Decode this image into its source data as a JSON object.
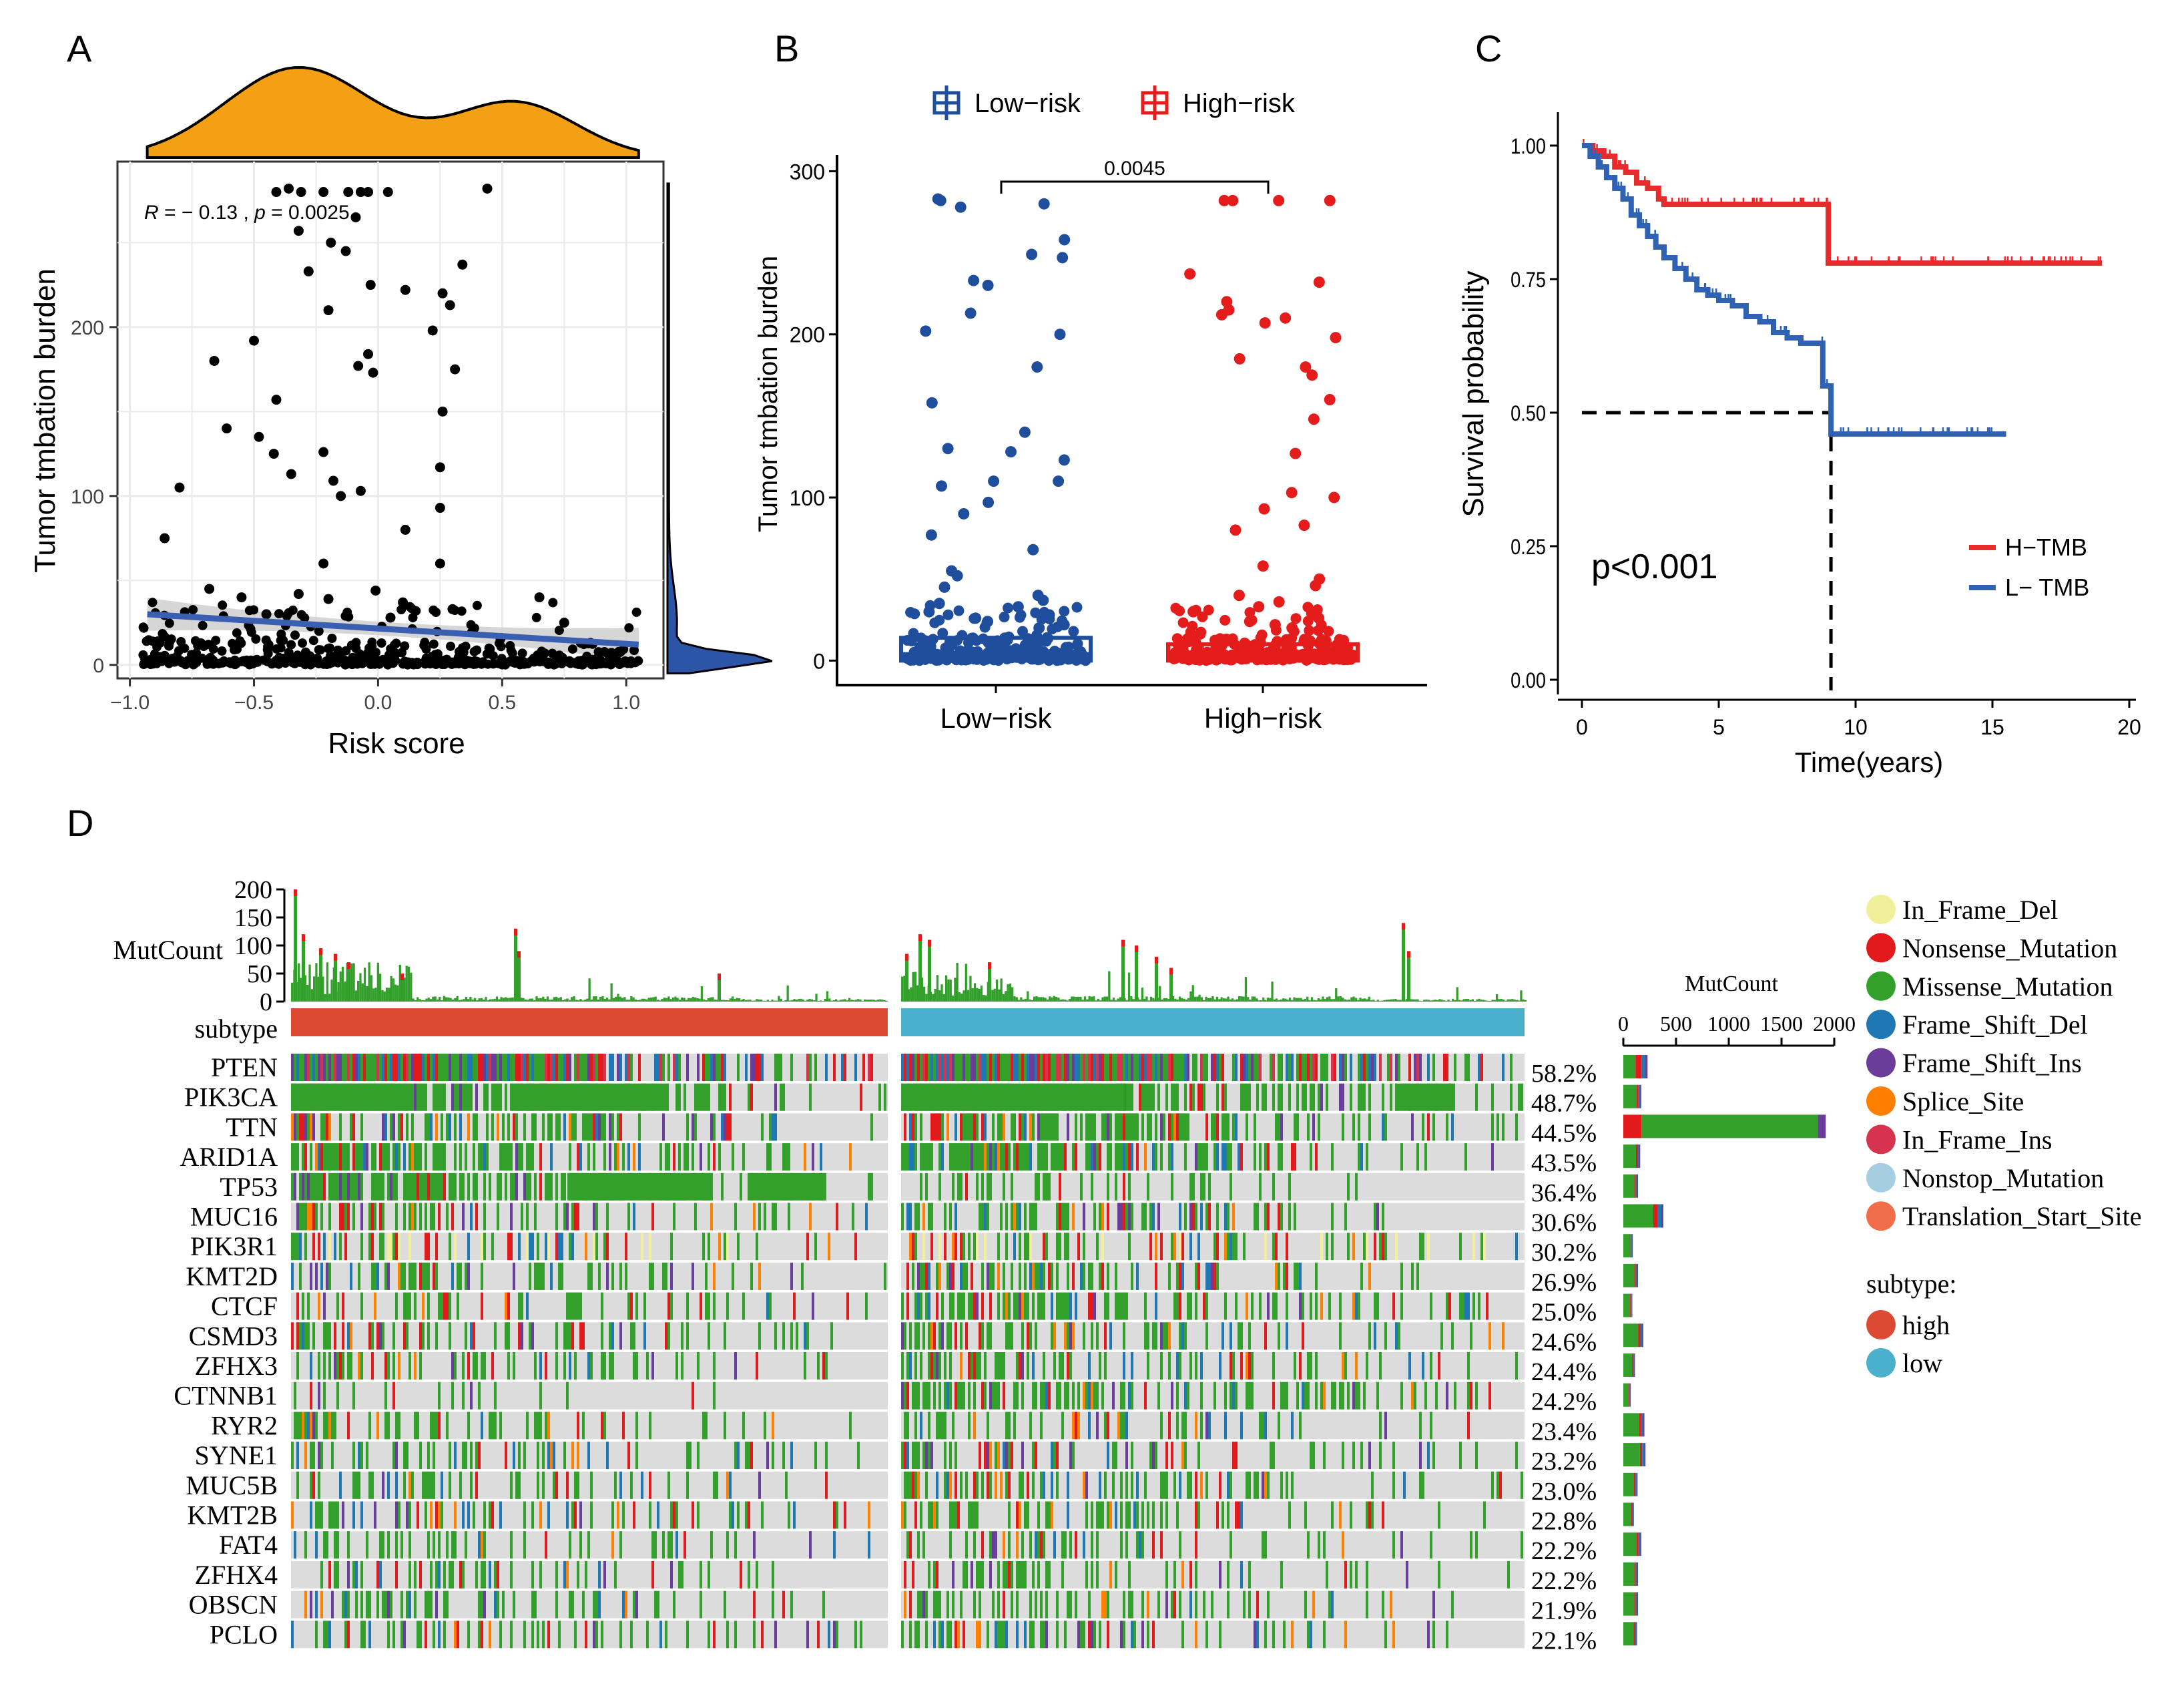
{
  "panel_letters": {
    "a": "A",
    "b": "B",
    "c": "C",
    "d": "D"
  },
  "colors": {
    "density_top": "#f3a014",
    "density_right": "#2c55a8",
    "scatter_point": "#000000",
    "fit_line": "#3a5fb0",
    "fit_ci": "#cccccc",
    "low_risk": "#1f4e9c",
    "high_risk": "#e41c1c",
    "h_tmb": "#e82c2c",
    "l_tmb": "#2f62b3",
    "grid": "#ebebeb",
    "subtype_high": "#dc4a34",
    "subtype_low": "#4ab0cc",
    "oncoplot_bg": "#dcdcdc",
    "mut_in_frame_del": "#f2ef9b",
    "mut_nonsense": "#e31a1c",
    "mut_missense": "#33a02c",
    "mut_frame_shift_del": "#1f78b4",
    "mut_frame_shift_ins": "#6a3d9a",
    "mut_splice_site": "#ff7f00",
    "mut_in_frame_ins": "#d6344e",
    "mut_nonstop": "#a6cee3",
    "mut_translation_start": "#f06c4a"
  },
  "chart_data": [
    {
      "id": "A",
      "type": "scatter",
      "title": "",
      "xlabel": "Risk score",
      "ylabel": "Tumor tmbation burden",
      "xlim": [
        -1.05,
        1.15
      ],
      "ylim": [
        -8,
        298
      ],
      "xticks": [
        -1.0,
        -0.5,
        0.0,
        0.5,
        1.0
      ],
      "xtick_labels": [
        "−1.0",
        "−0.5",
        "0.0",
        "0.5",
        "1.0"
      ],
      "yticks": [
        0,
        100,
        200
      ],
      "ytick_labels": [
        "0",
        "100",
        "200"
      ],
      "grid": true,
      "annotation": {
        "r_label": "R",
        "r_text": " = − 0.13 , ",
        "p_label": "p",
        "p_text": " = 0.0025"
      },
      "fit": {
        "x": [
          -0.93,
          1.05
        ],
        "y": [
          30,
          12
        ]
      },
      "points": [
        [
          -0.41,
          280
        ],
        [
          -0.36,
          282
        ],
        [
          -0.31,
          280
        ],
        [
          -0.22,
          280
        ],
        [
          -0.12,
          280
        ],
        [
          -0.07,
          280
        ],
        [
          -0.04,
          280
        ],
        [
          0.04,
          280
        ],
        [
          0.44,
          282
        ],
        [
          -0.09,
          265
        ],
        [
          -0.32,
          257
        ],
        [
          -0.19,
          250
        ],
        [
          -0.13,
          245
        ],
        [
          0.34,
          237
        ],
        [
          -0.28,
          233
        ],
        [
          -0.03,
          225
        ],
        [
          0.11,
          222
        ],
        [
          0.26,
          220
        ],
        [
          -0.2,
          210
        ],
        [
          0.29,
          213
        ],
        [
          0.22,
          198
        ],
        [
          -0.5,
          192
        ],
        [
          -0.66,
          180
        ],
        [
          -0.04,
          184
        ],
        [
          -0.08,
          177
        ],
        [
          -0.02,
          173
        ],
        [
          0.31,
          175
        ],
        [
          -0.41,
          157
        ],
        [
          -0.61,
          140
        ],
        [
          0.26,
          150
        ],
        [
          -0.48,
          135
        ],
        [
          -0.42,
          125
        ],
        [
          -0.35,
          113
        ],
        [
          -0.22,
          126
        ],
        [
          0.25,
          117
        ],
        [
          -0.8,
          105
        ],
        [
          -0.18,
          109
        ],
        [
          -0.15,
          100
        ],
        [
          -0.07,
          103
        ],
        [
          0.25,
          93
        ],
        [
          -0.86,
          75
        ],
        [
          0.11,
          80
        ],
        [
          -0.22,
          60
        ],
        [
          0.25,
          60
        ],
        [
          0.65,
          40
        ],
        [
          0.75,
          25
        ],
        [
          -0.68,
          45
        ],
        [
          -0.55,
          40
        ],
        [
          -0.32,
          42
        ],
        [
          -0.2,
          39
        ],
        [
          -0.01,
          44
        ],
        [
          0.1,
          37
        ],
        [
          0.3,
          33
        ],
        [
          -0.45,
          30
        ],
        [
          0.05,
          28
        ]
      ],
      "cluster_note": "dense band of points between 0 and 35 across x -0.95..1.05"
    },
    {
      "id": "B",
      "type": "scatter",
      "title": "",
      "xlabel": "",
      "ylabel": "Tumor tmbation burden",
      "categories": [
        "Low−risk",
        "High−risk"
      ],
      "legend": [
        "Low−risk",
        "High−risk"
      ],
      "ylim": [
        -15,
        310
      ],
      "yticks": [
        0,
        100,
        200,
        300
      ],
      "ytick_labels": [
        "0",
        "100",
        "200",
        "300"
      ],
      "pvalue": "0.0045",
      "box": {
        "low_risk": {
          "q1": 0,
          "median": 4,
          "q3": 14
        },
        "high_risk": {
          "q1": 0,
          "median": 3,
          "q3": 10
        }
      },
      "series": [
        {
          "name": "Low−risk",
          "values": [
            283,
            278,
            282,
            280,
            258,
            249,
            247,
            233,
            230,
            213,
            202,
            200,
            180,
            158,
            140,
            130,
            128,
            123,
            110,
            110,
            107,
            97,
            90,
            77,
            68,
            55,
            52,
            45,
            40,
            37,
            35,
            33,
            30,
            28,
            26,
            24,
            22,
            20
          ]
        },
        {
          "name": "High−risk",
          "values": [
            282,
            282,
            282,
            282,
            237,
            232,
            220,
            215,
            212,
            210,
            207,
            198,
            185,
            180,
            175,
            160,
            148,
            127,
            103,
            100,
            93,
            83,
            80,
            58,
            50,
            46,
            40,
            36,
            33,
            30,
            28,
            26,
            24,
            22,
            20
          ]
        }
      ]
    },
    {
      "id": "C",
      "type": "line",
      "title": "",
      "xlabel": "Time(years)",
      "ylabel": "Survival probability",
      "xlim": [
        -0.5,
        21
      ],
      "ylim": [
        -0.05,
        1.05
      ],
      "xticks": [
        0,
        5,
        10,
        15,
        20
      ],
      "xtick_labels": [
        "0",
        "5",
        "10",
        "15",
        "20"
      ],
      "yticks": [
        0,
        0.25,
        0.5,
        0.75,
        1.0
      ],
      "ytick_labels": [
        "0.00",
        "0.25",
        "0.50",
        "0.75",
        "1.00"
      ],
      "pvalue_text": "p<0.001",
      "legend": [
        "H−TMB",
        "L− TMB"
      ],
      "median_line": {
        "y": 0.5,
        "x": 9.1
      },
      "series": [
        {
          "name": "H−TMB",
          "x": [
            0,
            0.4,
            0.8,
            1.2,
            1.6,
            2.0,
            2.4,
            2.8,
            3.0,
            9.0,
            9.0,
            19.0
          ],
          "y": [
            1,
            0.99,
            0.98,
            0.96,
            0.95,
            0.93,
            0.92,
            0.9,
            0.89,
            0.89,
            0.78,
            0.78
          ]
        },
        {
          "name": "L− TMB",
          "x": [
            0,
            0.3,
            0.6,
            0.9,
            1.2,
            1.5,
            1.8,
            2.1,
            2.4,
            2.7,
            3.0,
            3.4,
            3.8,
            4.2,
            4.6,
            5.0,
            5.5,
            6.0,
            6.5,
            7.0,
            7.5,
            8.0,
            8.5,
            8.8,
            8.8,
            9.1,
            9.1,
            9.1,
            15.5
          ],
          "y": [
            1,
            0.98,
            0.96,
            0.94,
            0.92,
            0.9,
            0.87,
            0.85,
            0.83,
            0.81,
            0.79,
            0.77,
            0.75,
            0.73,
            0.72,
            0.71,
            0.7,
            0.68,
            0.67,
            0.65,
            0.64,
            0.63,
            0.63,
            0.63,
            0.55,
            0.55,
            0.52,
            0.46,
            0.46
          ]
        }
      ]
    },
    {
      "id": "D",
      "type": "heatmap",
      "title": "",
      "top_bar_label": "MutCount",
      "top_bar_ticks": [
        "200",
        "150",
        "100",
        "50",
        "0"
      ],
      "subtype_label": "subtype",
      "side_bar_title": "MutCount",
      "side_bar_ticks": [
        "0",
        "500",
        "1000",
        "1500",
        "2000"
      ],
      "side_bar_max": 2000,
      "genes": [
        "PTEN",
        "PIK3CA",
        "TTN",
        "ARID1A",
        "TP53",
        "MUC16",
        "PIK3R1",
        "KMT2D",
        "CTCF",
        "CSMD3",
        "ZFHX3",
        "CTNNB1",
        "RYR2",
        "SYNE1",
        "MUC5B",
        "KMT2B",
        "FAT4",
        "ZFHX4",
        "OBSCN",
        "PCLO"
      ],
      "percents": [
        "58.2%",
        "48.7%",
        "44.5%",
        "43.5%",
        "36.4%",
        "30.6%",
        "30.2%",
        "26.9%",
        "25.0%",
        "24.6%",
        "24.4%",
        "24.2%",
        "23.4%",
        "23.2%",
        "23.0%",
        "22.8%",
        "22.2%",
        "22.2%",
        "21.9%",
        "22.1%"
      ],
      "gene_mutcount": [
        230,
        170,
        1920,
        160,
        140,
        380,
        90,
        140,
        85,
        190,
        110,
        70,
        200,
        210,
        135,
        100,
        170,
        140,
        140,
        130
      ],
      "mutation_types": [
        "In_Frame_Del",
        "Nonsense_Mutation",
        "Missense_Mutation",
        "Frame_Shift_Del",
        "Frame_Shift_Ins",
        "Splice_Site",
        "In_Frame_Ins",
        "Nonstop_Mutation",
        "Translation_Start_Site"
      ],
      "subtype_legend_title": "subtype:",
      "subtype_levels": [
        "high",
        "low"
      ]
    }
  ]
}
